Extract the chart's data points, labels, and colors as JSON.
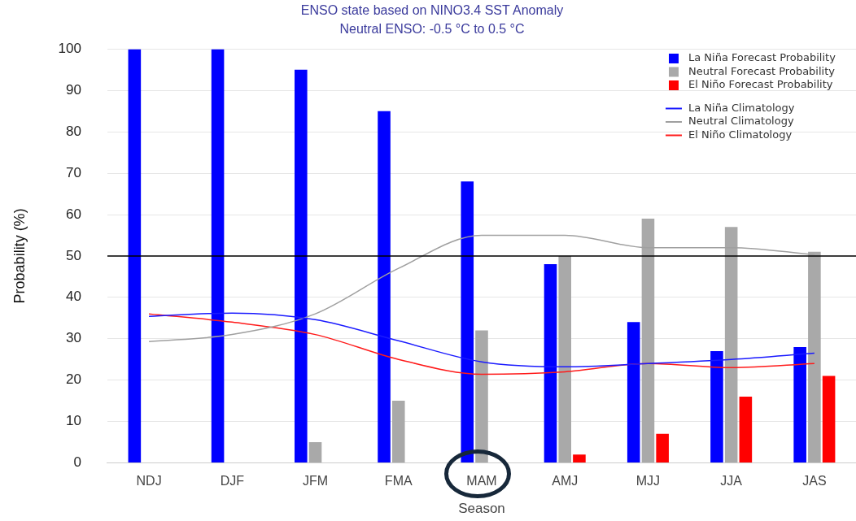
{
  "chart_data": {
    "type": "bar",
    "title": "ENSO state based on NINO3.4 SST Anomaly",
    "subtitle": "Neutral ENSO: -0.5 °C to 0.5 °C",
    "xlabel": "Season",
    "ylabel": "Probability (%)",
    "categories": [
      "NDJ",
      "DJF",
      "JFM",
      "FMA",
      "MAM",
      "AMJ",
      "MJJ",
      "JJA",
      "JAS"
    ],
    "series": [
      {
        "name": "La Niña Forecast Probability",
        "color": "#0000ff",
        "values": [
          100,
          100,
          95,
          85,
          68,
          48,
          34,
          27,
          28
        ]
      },
      {
        "name": "Neutral Forecast Probability",
        "color": "#a9a9a9",
        "values": [
          0,
          0,
          5,
          15,
          32,
          50,
          59,
          57,
          51
        ]
      },
      {
        "name": "El Niño Forecast Probability",
        "color": "#ff0000",
        "values": [
          0,
          0,
          0,
          0,
          0,
          2,
          7,
          16,
          21
        ]
      },
      {
        "name": "La Niña Climatology",
        "type": "line",
        "color": "#1a1aff",
        "values": [
          35.4,
          36.2,
          34.6,
          29.5,
          24.4,
          23.2,
          24,
          25,
          26.5
        ]
      },
      {
        "name": "Neutral Climatology",
        "type": "line",
        "color": "#a0a0a0",
        "values": [
          29.3,
          31,
          36,
          47,
          55,
          55,
          52,
          52,
          50.3
        ]
      },
      {
        "name": "El Niño Climatology",
        "type": "line",
        "color": "#ff1a1a",
        "values": [
          36,
          34,
          31,
          25,
          21.4,
          22,
          24,
          23,
          24
        ]
      }
    ],
    "ylim": [
      0,
      100
    ],
    "yticks": [
      0,
      10,
      20,
      30,
      40,
      50,
      60,
      70,
      80,
      90,
      100
    ],
    "grid": "y",
    "legend": "top right",
    "marker": "none",
    "ref_lines": [
      {
        "axis": "y",
        "value": 50,
        "color": "#000000"
      }
    ]
  }
}
